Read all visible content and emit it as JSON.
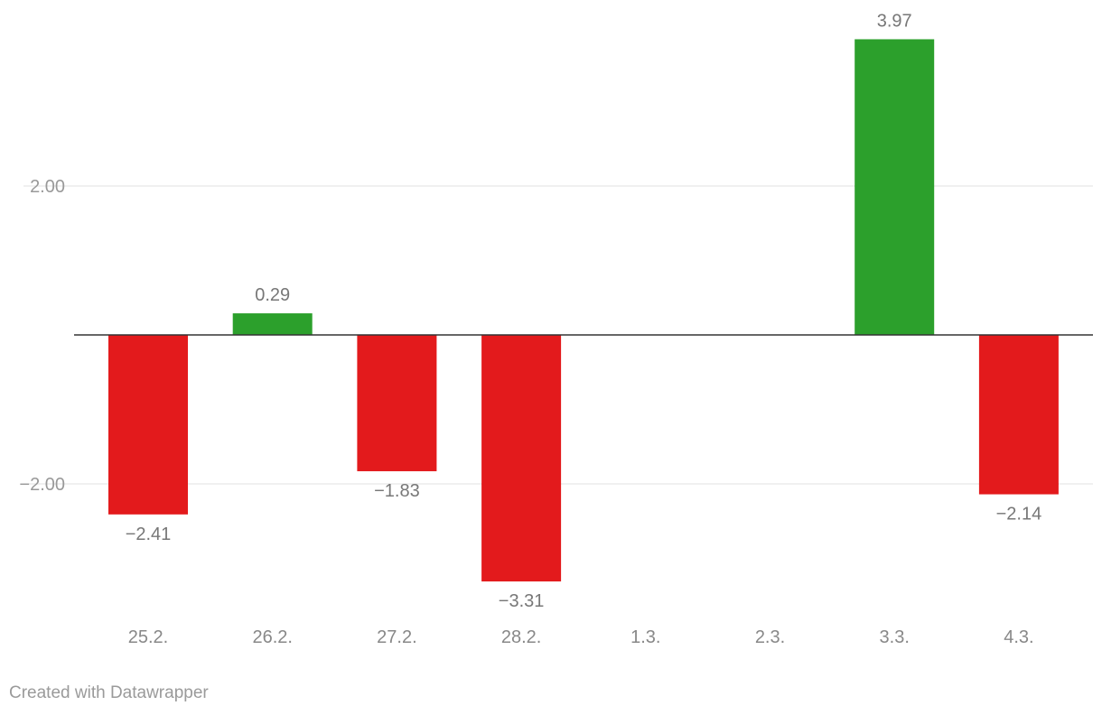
{
  "chart_data": {
    "type": "bar",
    "categories": [
      "25.2.",
      "26.2.",
      "27.2.",
      "28.2.",
      "1.3.",
      "2.3.",
      "3.3.",
      "4.3."
    ],
    "values": [
      -2.41,
      0.29,
      -1.83,
      -3.31,
      null,
      null,
      3.97,
      -2.14
    ],
    "value_labels": [
      "−2.41",
      "0.29",
      "−1.83",
      "−3.31",
      "",
      "",
      "3.97",
      "−2.14"
    ],
    "y_ticks": [
      2,
      -2
    ],
    "y_tick_labels": [
      "2.00",
      "−2.00"
    ],
    "ylim": [
      -3.31,
      3.97
    ],
    "grid": true,
    "legend": "none",
    "colors": {
      "positive": "#2ca02c",
      "negative": "#e31a1c",
      "baseline": "#333333",
      "grid": "#e0e0e0"
    },
    "title": "",
    "xlabel": "",
    "ylabel": ""
  },
  "footer": {
    "credit": "Created with Datawrapper"
  }
}
